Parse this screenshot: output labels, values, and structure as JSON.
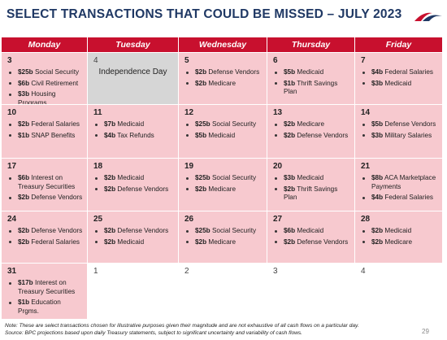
{
  "title": "SELECT TRANSACTIONS THAT COULD BE MISSED – JULY 2023",
  "weekdays": [
    "Monday",
    "Tuesday",
    "Wednesday",
    "Thursday",
    "Friday"
  ],
  "weeks": [
    [
      {
        "day": "3",
        "items": [
          {
            "amt": "$25b",
            "desc": "Social Security"
          },
          {
            "amt": "$6b",
            "desc": "Civil Retirement"
          },
          {
            "amt": "$3b",
            "desc": "Housing Programs"
          }
        ]
      },
      {
        "day": "4",
        "holiday": "Independence Day"
      },
      {
        "day": "5",
        "items": [
          {
            "amt": "$2b",
            "desc": "Defense Vendors"
          },
          {
            "amt": "$2b",
            "desc": "Medicare"
          }
        ]
      },
      {
        "day": "6",
        "items": [
          {
            "amt": "$5b",
            "desc": "Medicaid"
          },
          {
            "amt": "$1b",
            "desc": "Thrift Savings Plan"
          }
        ]
      },
      {
        "day": "7",
        "items": [
          {
            "amt": "$4b",
            "desc": "Federal Salaries"
          },
          {
            "amt": "$3b",
            "desc": "Medicaid"
          }
        ]
      }
    ],
    [
      {
        "day": "10",
        "items": [
          {
            "amt": "$2b",
            "desc": "Federal Salaries"
          },
          {
            "amt": "$1b",
            "desc": "SNAP Benefits"
          }
        ]
      },
      {
        "day": "11",
        "items": [
          {
            "amt": "$7b",
            "desc": "Medicaid"
          },
          {
            "amt": "$4b",
            "desc": "Tax Refunds"
          }
        ]
      },
      {
        "day": "12",
        "items": [
          {
            "amt": "$25b",
            "desc": "Social Security"
          },
          {
            "amt": "$5b",
            "desc": "Medicaid"
          }
        ]
      },
      {
        "day": "13",
        "items": [
          {
            "amt": "$2b",
            "desc": "Medicare"
          },
          {
            "amt": "$2b",
            "desc": "Defense Vendors"
          }
        ]
      },
      {
        "day": "14",
        "items": [
          {
            "amt": "$5b",
            "desc": "Defense Vendors"
          },
          {
            "amt": "$3b",
            "desc": "Military Salaries"
          }
        ]
      }
    ],
    [
      {
        "day": "17",
        "items": [
          {
            "amt": "$6b",
            "desc": "Interest on Treasury Securities"
          },
          {
            "amt": "$2b",
            "desc": "Defense Vendors"
          }
        ]
      },
      {
        "day": "18",
        "items": [
          {
            "amt": "$2b",
            "desc": "Medicaid"
          },
          {
            "amt": "$2b",
            "desc": "Defense Vendors"
          }
        ]
      },
      {
        "day": "19",
        "items": [
          {
            "amt": "$25b",
            "desc": "Social Security"
          },
          {
            "amt": "$2b",
            "desc": "Medicare"
          }
        ]
      },
      {
        "day": "20",
        "items": [
          {
            "amt": "$3b",
            "desc": "Medicaid"
          },
          {
            "amt": "$2b",
            "desc": "Thrift Savings Plan"
          }
        ]
      },
      {
        "day": "21",
        "items": [
          {
            "amt": "$8b",
            "desc": "ACA Marketplace Payments"
          },
          {
            "amt": "$4b",
            "desc": "Federal Salaries"
          }
        ]
      }
    ],
    [
      {
        "day": "24",
        "items": [
          {
            "amt": "$2b",
            "desc": "Defense Vendors"
          },
          {
            "amt": "$2b",
            "desc": "Federal Salaries"
          }
        ]
      },
      {
        "day": "25",
        "items": [
          {
            "amt": "$2b",
            "desc": "Defense Vendors"
          },
          {
            "amt": "$2b",
            "desc": "Medicaid"
          }
        ]
      },
      {
        "day": "26",
        "items": [
          {
            "amt": "$25b",
            "desc": "Social Security"
          },
          {
            "amt": "$2b",
            "desc": "Medicare"
          }
        ]
      },
      {
        "day": "27",
        "items": [
          {
            "amt": "$6b",
            "desc": "Medicaid"
          },
          {
            "amt": "$2b",
            "desc": "Defense Vendors"
          }
        ]
      },
      {
        "day": "28",
        "items": [
          {
            "amt": "$2b",
            "desc": "Medicaid"
          },
          {
            "amt": "$2b",
            "desc": "Medicare"
          }
        ]
      }
    ],
    [
      {
        "day": "31",
        "items": [
          {
            "amt": "$17b",
            "desc": "Interest on Treasury Securities"
          },
          {
            "amt": "$1b",
            "desc": "Education Prgms."
          }
        ]
      },
      {
        "day": "1",
        "blank": true
      },
      {
        "day": "2",
        "blank": true
      },
      {
        "day": "3",
        "blank": true
      },
      {
        "day": "4",
        "blank": true
      }
    ]
  ],
  "footnote": {
    "note": "Note: These are select transactions chosen for illustrative purposes given their magnitude and are not exhaustive of all cash flows on a particular day.",
    "source": "Source: BPC projections based upon daily Treasury statements, subject to significant uncertainty and variability of cash flows."
  },
  "page_number": "29",
  "colors": {
    "header": "#c8102e",
    "cell": "#f7c9cf",
    "holiday": "#d6d6d6",
    "title": "#1f3864"
  },
  "logo": "bpc-swoosh-logo"
}
